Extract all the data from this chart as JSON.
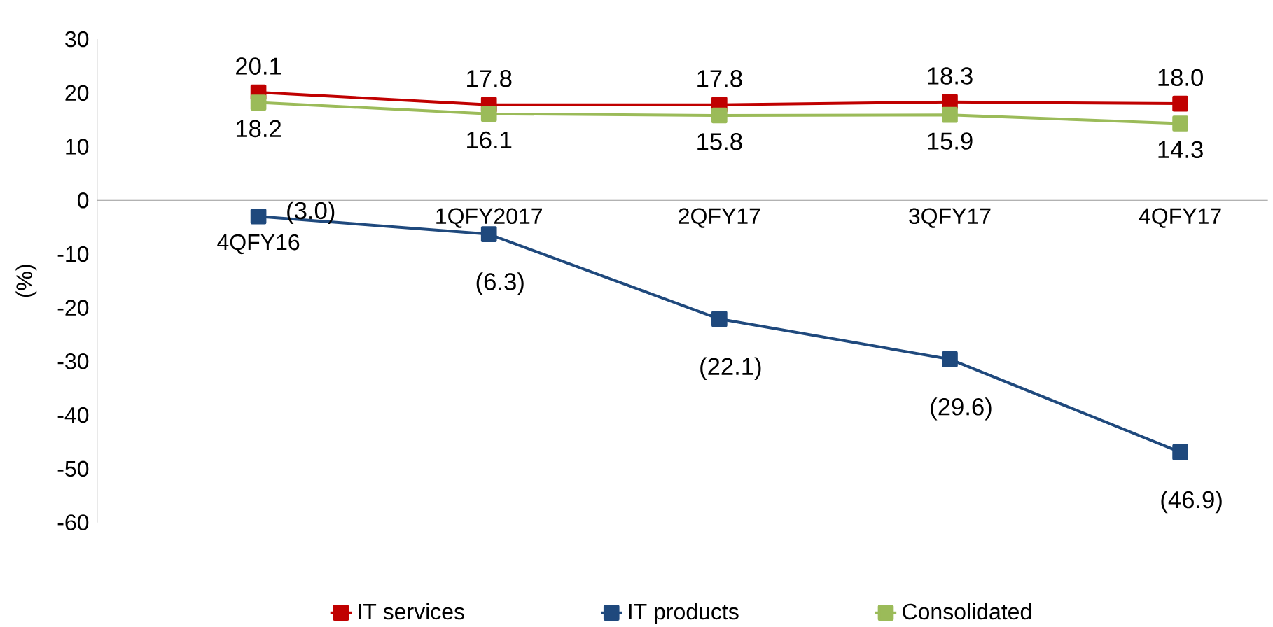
{
  "chart_data": {
    "type": "line",
    "ylabel": "(%)",
    "categories": [
      "4QFY16",
      "1QFY2017",
      "2QFY17",
      "3QFY17",
      "4QFY17"
    ],
    "series": [
      {
        "name": "IT services",
        "color": "#c00000",
        "values": [
          20.1,
          17.8,
          17.8,
          18.3,
          18.0
        ],
        "value_labels": [
          "20.1",
          "17.8",
          "17.8",
          "18.3",
          "18.0"
        ]
      },
      {
        "name": "IT products",
        "color": "#1f497d",
        "values": [
          -3.0,
          -6.3,
          -22.1,
          -29.6,
          -46.9
        ],
        "value_labels": [
          "(3.0)",
          "(6.3)",
          "(22.1)",
          "(29.6)",
          "(46.9)"
        ]
      },
      {
        "name": "Consolidated",
        "color": "#9bbb59",
        "values": [
          18.2,
          16.1,
          15.8,
          15.9,
          14.3
        ],
        "value_labels": [
          "18.2",
          "16.1",
          "15.8",
          "15.9",
          "14.3"
        ]
      }
    ],
    "ylim": [
      -60,
      30
    ],
    "yticks": [
      -60,
      -50,
      -40,
      -30,
      -20,
      -10,
      0,
      10,
      20,
      30
    ],
    "legend": "bottom",
    "marker": "square",
    "line_style": "solid",
    "grid": false
  }
}
